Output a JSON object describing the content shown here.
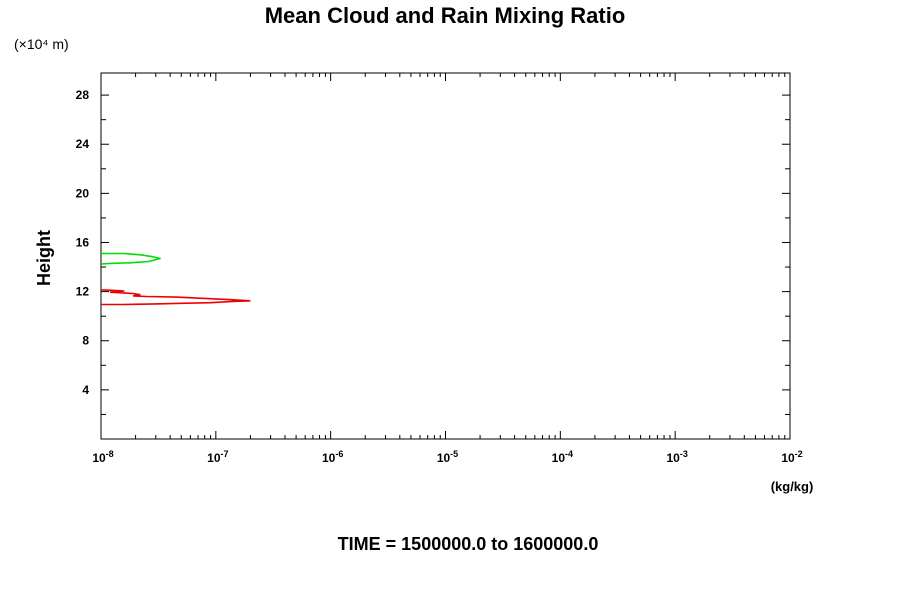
{
  "chart_data": {
    "type": "line",
    "title": "Mean Cloud and Rain Mixing Ratio",
    "ylabel": "Height",
    "y_scale_note": "(×10⁴ m)",
    "xlabel": "(kg/kg)",
    "footer": "TIME = 1500000.0 to 1600000.0",
    "x_scale": "log",
    "xlim": [
      1e-08,
      0.01
    ],
    "ylim": [
      0,
      29.8
    ],
    "x_ticks": [
      {
        "base": "10",
        "exp": "-8"
      },
      {
        "base": "10",
        "exp": "-7"
      },
      {
        "base": "10",
        "exp": "-6"
      },
      {
        "base": "10",
        "exp": "-5"
      },
      {
        "base": "10",
        "exp": "-4"
      },
      {
        "base": "10",
        "exp": "-3"
      },
      {
        "base": "10",
        "exp": "-2"
      }
    ],
    "y_ticks": [
      "4",
      "8",
      "12",
      "16",
      "20",
      "24",
      "28"
    ],
    "series": [
      {
        "color": "#00dd00",
        "x": [
          1e-08,
          1.6e-08,
          2.2e-08,
          2.8e-08,
          3.3e-08,
          2.6e-08,
          1.8e-08,
          1.2e-08,
          1e-08
        ],
        "y": [
          15.1,
          15.1,
          15.0,
          14.85,
          14.7,
          14.45,
          14.35,
          14.3,
          14.25
        ]
      },
      {
        "color": "#ee0000",
        "x": [
          1e-08,
          1.3e-08,
          1.6e-08,
          1.2e-08,
          1.9e-08,
          2.2e-08,
          1.9e-08,
          2.5e-08,
          4.5e-08,
          8e-08,
          1.3e-07,
          2e-07,
          1.4e-07,
          9e-08,
          5e-08,
          3e-08,
          1.6e-08,
          1e-08
        ],
        "y": [
          12.15,
          12.1,
          12.05,
          11.95,
          11.85,
          11.75,
          11.65,
          11.6,
          11.55,
          11.45,
          11.35,
          11.25,
          11.2,
          11.1,
          11.05,
          11.0,
          10.95,
          10.95
        ]
      }
    ]
  }
}
